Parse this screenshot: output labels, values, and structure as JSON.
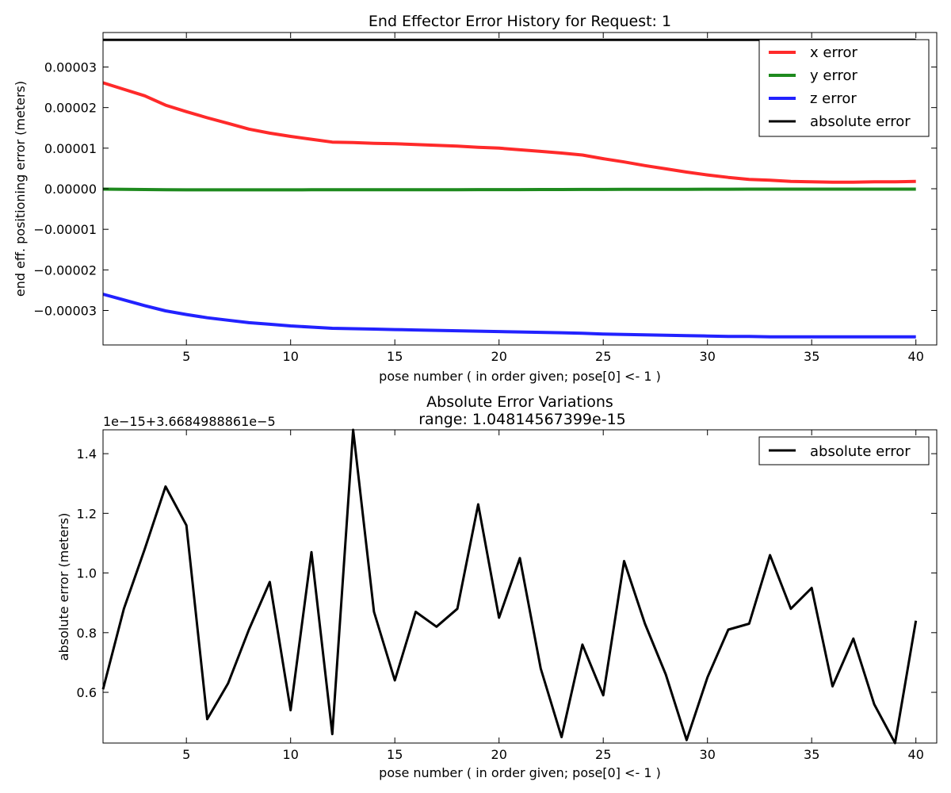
{
  "chart_data": [
    {
      "type": "line",
      "title": "End Effector Error History for Request: 1",
      "xlabel": "pose number ( in order given; pose[0] <- 1 )",
      "ylabel": "end eff. positioning error (meters)",
      "xlim": [
        1,
        41
      ],
      "ylim": [
        -3.85e-05,
        3.85e-05
      ],
      "xticks": [
        5,
        10,
        15,
        20,
        25,
        30,
        35,
        40
      ],
      "yticks": [
        -3e-05,
        -2e-05,
        -1e-05,
        0,
        1e-05,
        2e-05,
        3e-05
      ],
      "ytick_labels": [
        "−0.00003",
        "−0.00002",
        "−0.00001",
        "0.00000",
        "0.00001",
        "0.00002",
        "0.00003"
      ],
      "grid": false,
      "legend": "top-right",
      "series": [
        {
          "name": "x error",
          "color": "#ff2a2a",
          "x": [
            1,
            2,
            3,
            4,
            5,
            6,
            7,
            8,
            9,
            10,
            11,
            12,
            13,
            14,
            15,
            16,
            17,
            18,
            19,
            20,
            21,
            22,
            23,
            24,
            25,
            26,
            27,
            28,
            29,
            30,
            31,
            32,
            33,
            34,
            35,
            36,
            37,
            38,
            39,
            40
          ],
          "y": [
            2.61e-05,
            2.45e-05,
            2.29e-05,
            2.06e-05,
            1.9e-05,
            1.75e-05,
            1.61e-05,
            1.47e-05,
            1.37e-05,
            1.29e-05,
            1.22e-05,
            1.15e-05,
            1.14e-05,
            1.12e-05,
            1.11e-05,
            1.09e-05,
            1.07e-05,
            1.05e-05,
            1.02e-05,
            1e-05,
            9.6e-06,
            9.2e-06,
            8.8e-06,
            8.3e-06,
            7.4e-06,
            6.6e-06,
            5.7e-06,
            4.9e-06,
            4.1e-06,
            3.4e-06,
            2.8e-06,
            2.3e-06,
            2.1e-06,
            1.8e-06,
            1.7e-06,
            1.6e-06,
            1.6e-06,
            1.7e-06,
            1.7e-06,
            1.8e-06
          ]
        },
        {
          "name": "y error",
          "color": "#1e8a1e",
          "x": [
            1,
            2,
            3,
            4,
            5,
            6,
            7,
            8,
            9,
            10,
            11,
            12,
            13,
            14,
            15,
            16,
            17,
            18,
            19,
            20,
            21,
            22,
            23,
            24,
            25,
            26,
            27,
            28,
            29,
            30,
            31,
            32,
            33,
            34,
            35,
            36,
            37,
            38,
            39,
            40
          ],
          "y": [
            -1e-07,
            -1.5e-07,
            -2e-07,
            -2.5e-07,
            -2.7e-07,
            -2.8e-07,
            -2.8e-07,
            -2.8e-07,
            -2.7e-07,
            -2.7e-07,
            -2.6e-07,
            -2.6e-07,
            -2.5e-07,
            -2.5e-07,
            -2.4e-07,
            -2.4e-07,
            -2.3e-07,
            -2.3e-07,
            -2.2e-07,
            -2.2e-07,
            -2.1e-07,
            -2e-07,
            -1.9e-07,
            -1.8e-07,
            -1.7e-07,
            -1.6e-07,
            -1.5e-07,
            -1.4e-07,
            -1.3e-07,
            -1.2e-07,
            -1.1e-07,
            -1e-07,
            -1e-07,
            -1e-07,
            -1e-07,
            -1e-07,
            -1e-07,
            -1e-07,
            -1e-07,
            -1e-07
          ]
        },
        {
          "name": "z error",
          "color": "#2222ff",
          "x": [
            1,
            2,
            3,
            4,
            5,
            6,
            7,
            8,
            9,
            10,
            11,
            12,
            13,
            14,
            15,
            16,
            17,
            18,
            19,
            20,
            21,
            22,
            23,
            24,
            25,
            26,
            27,
            28,
            29,
            30,
            31,
            32,
            33,
            34,
            35,
            36,
            37,
            38,
            39,
            40
          ],
          "y": [
            -2.6e-05,
            -2.74e-05,
            -2.88e-05,
            -3.01e-05,
            -3.1e-05,
            -3.18e-05,
            -3.24e-05,
            -3.3e-05,
            -3.34e-05,
            -3.38e-05,
            -3.41e-05,
            -3.44e-05,
            -3.45e-05,
            -3.46e-05,
            -3.47e-05,
            -3.48e-05,
            -3.49e-05,
            -3.5e-05,
            -3.51e-05,
            -3.52e-05,
            -3.53e-05,
            -3.54e-05,
            -3.55e-05,
            -3.56e-05,
            -3.58e-05,
            -3.59e-05,
            -3.6e-05,
            -3.61e-05,
            -3.62e-05,
            -3.63e-05,
            -3.64e-05,
            -3.64e-05,
            -3.65e-05,
            -3.65e-05,
            -3.65e-05,
            -3.65e-05,
            -3.65e-05,
            -3.65e-05,
            -3.65e-05,
            -3.65e-05
          ]
        },
        {
          "name": "absolute error",
          "color": "#000000",
          "x": [
            1,
            40
          ],
          "y": [
            3.66849888e-05,
            3.66849888e-05
          ]
        }
      ]
    },
    {
      "type": "line",
      "title": "Absolute Error Variations",
      "subtitle": "range: 1.04814567399e-15",
      "offset_text": "1e−15+3.6684988861e−5",
      "xlabel": "pose number ( in order given; pose[0] <- 1 )",
      "ylabel": "absolute error (meters)",
      "xlim": [
        1,
        41
      ],
      "ylim": [
        0.43,
        1.48
      ],
      "xticks": [
        5,
        10,
        15,
        20,
        25,
        30,
        35,
        40
      ],
      "yticks": [
        0.6,
        0.8,
        1.0,
        1.2,
        1.4
      ],
      "ytick_labels": [
        "0.6",
        "0.8",
        "1.0",
        "1.2",
        "1.4"
      ],
      "grid": false,
      "legend": "top-right",
      "series": [
        {
          "name": "absolute error",
          "color": "#000000",
          "x": [
            1,
            2,
            3,
            4,
            5,
            6,
            7,
            8,
            9,
            10,
            11,
            12,
            13,
            14,
            15,
            16,
            17,
            18,
            19,
            20,
            21,
            22,
            23,
            24,
            25,
            26,
            27,
            28,
            29,
            30,
            31,
            32,
            33,
            34,
            35,
            36,
            37,
            38,
            39,
            40
          ],
          "y": [
            0.61,
            0.88,
            1.08,
            1.29,
            1.16,
            0.51,
            0.63,
            0.81,
            0.97,
            0.54,
            1.07,
            0.46,
            1.48,
            0.87,
            0.64,
            0.87,
            0.82,
            0.88,
            1.23,
            0.85,
            1.05,
            0.68,
            0.45,
            0.76,
            0.59,
            1.04,
            0.83,
            0.66,
            0.44,
            0.65,
            0.81,
            0.83,
            1.06,
            0.88,
            0.95,
            0.62,
            0.78,
            0.56,
            0.43,
            0.84
          ]
        }
      ]
    }
  ]
}
